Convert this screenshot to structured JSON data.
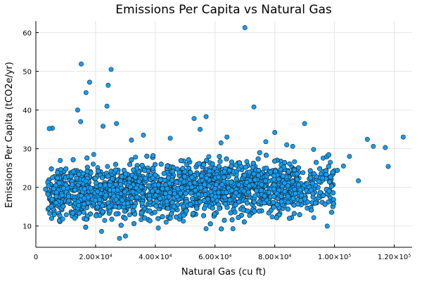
{
  "chart_data": {
    "type": "scatter",
    "title": "Emissions Per Capita vs Natural Gas",
    "xlabel": "Natural Gas (cu ft)",
    "ylabel": "Emissions Per Capita (tCO2e/yr)",
    "xlim": [
      0,
      126000
    ],
    "ylim": [
      4.5,
      63
    ],
    "grid": true,
    "legend": "none",
    "marker_color": "#129ef4",
    "marker_edge": "#1a1a1a",
    "x_ticks": [
      {
        "value": 0,
        "label": "0"
      },
      {
        "value": 20000,
        "label": "2.00×10⁴"
      },
      {
        "value": 40000,
        "label": "4.00×10⁴"
      },
      {
        "value": 60000,
        "label": "6.00×10⁴"
      },
      {
        "value": 80000,
        "label": "8.00×10⁴"
      },
      {
        "value": 100000,
        "label": "1.00×10⁵"
      },
      {
        "value": 120000,
        "label": "1.20×10⁵"
      }
    ],
    "y_ticks": [
      {
        "value": 10,
        "label": "10"
      },
      {
        "value": 20,
        "label": "20"
      },
      {
        "value": 30,
        "label": "30"
      },
      {
        "value": 40,
        "label": "40"
      },
      {
        "value": 50,
        "label": "50"
      },
      {
        "value": 60,
        "label": "60"
      }
    ],
    "points": [
      [
        70000,
        61.3
      ],
      [
        15200,
        51.9
      ],
      [
        25200,
        50.5
      ],
      [
        18000,
        47.2
      ],
      [
        24200,
        46.4
      ],
      [
        16800,
        44.5
      ],
      [
        23800,
        41.0
      ],
      [
        14000,
        40.0
      ],
      [
        73000,
        40.8
      ],
      [
        57000,
        38.3
      ],
      [
        15000,
        37.0
      ],
      [
        27000,
        36.5
      ],
      [
        53000,
        37.8
      ],
      [
        90000,
        36.5
      ],
      [
        80000,
        34.2
      ],
      [
        5500,
        35.3
      ],
      [
        4500,
        35.2
      ],
      [
        22500,
        35.8
      ],
      [
        123000,
        33.0
      ],
      [
        118000,
        25.4
      ],
      [
        111000,
        32.4
      ],
      [
        113000,
        30.6
      ],
      [
        117000,
        30.3
      ],
      [
        105000,
        28.0
      ],
      [
        103000,
        25.5
      ],
      [
        108000,
        21.7
      ],
      [
        101000,
        24.4
      ],
      [
        99000,
        20.3
      ],
      [
        3200,
        19.5
      ],
      [
        4000,
        18.2
      ],
      [
        6800,
        16.0
      ],
      [
        9000,
        11.8
      ],
      [
        13000,
        12.0
      ],
      [
        28000,
        6.8
      ],
      [
        30000,
        7.4
      ],
      [
        57000,
        9.3
      ],
      [
        66000,
        9.3
      ],
      [
        41000,
        9.5
      ],
      [
        22000,
        8.6
      ],
      [
        96000,
        22.4
      ],
      [
        93000,
        29.8
      ],
      [
        86000,
        30.6
      ],
      [
        84000,
        31.0
      ],
      [
        77000,
        31.8
      ],
      [
        62000,
        31.5
      ],
      [
        45000,
        32.7
      ],
      [
        36000,
        33.5
      ],
      [
        32000,
        32.2
      ],
      [
        55000,
        35.0
      ],
      [
        64000,
        33.0
      ]
    ],
    "cloud_clusters": [
      {
        "x_range": [
          4000,
          100000
        ],
        "y_center": 19.5,
        "y_spread": 4.2,
        "slope_per_1e5": 2.0,
        "count": 5200
      }
    ]
  }
}
